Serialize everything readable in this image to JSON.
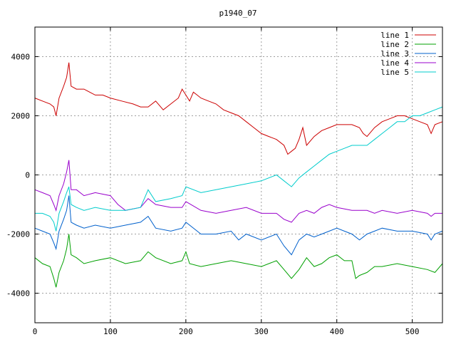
{
  "chart_data": {
    "type": "line",
    "title": "p1940_07",
    "xlabel": "",
    "ylabel": "",
    "xlim": [
      0,
      540
    ],
    "ylim": [
      -5000,
      5000
    ],
    "xticks": [
      0,
      100,
      200,
      300,
      400,
      500
    ],
    "yticks": [
      -4000,
      -2000,
      0,
      2000,
      4000
    ],
    "grid": true,
    "legend_position": "top-right",
    "series": [
      {
        "name": "line 1",
        "color": "#cc0000",
        "x": [
          0,
          10,
          20,
          25,
          28,
          32,
          38,
          42,
          45,
          48,
          55,
          65,
          80,
          90,
          100,
          115,
          130,
          140,
          150,
          160,
          170,
          180,
          190,
          195,
          200,
          205,
          210,
          215,
          220,
          230,
          240,
          250,
          260,
          270,
          280,
          290,
          300,
          310,
          320,
          330,
          335,
          340,
          345,
          350,
          355,
          360,
          370,
          380,
          390,
          400,
          410,
          420,
          430,
          435,
          440,
          450,
          460,
          470,
          480,
          490,
          500,
          510,
          520,
          525,
          530,
          540
        ],
        "y": [
          2600,
          2500,
          2400,
          2300,
          2000,
          2600,
          3000,
          3300,
          3800,
          3000,
          2900,
          2900,
          2700,
          2700,
          2600,
          2500,
          2400,
          2300,
          2300,
          2500,
          2200,
          2400,
          2600,
          2900,
          2700,
          2500,
          2800,
          2700,
          2600,
          2500,
          2400,
          2200,
          2100,
          2000,
          1800,
          1600,
          1400,
          1300,
          1200,
          1000,
          700,
          800,
          900,
          1200,
          1600,
          1000,
          1300,
          1500,
          1600,
          1700,
          1700,
          1700,
          1600,
          1400,
          1300,
          1600,
          1800,
          1900,
          2000,
          2000,
          1900,
          1800,
          1700,
          1400,
          1700,
          1800
        ]
      },
      {
        "name": "line 2",
        "color": "#00a000",
        "x": [
          0,
          10,
          20,
          25,
          28,
          32,
          38,
          42,
          45,
          48,
          55,
          65,
          80,
          100,
          120,
          140,
          150,
          160,
          180,
          195,
          200,
          205,
          220,
          240,
          260,
          280,
          300,
          320,
          330,
          340,
          350,
          360,
          370,
          380,
          390,
          400,
          410,
          420,
          425,
          430,
          440,
          450,
          460,
          480,
          500,
          520,
          530,
          540
        ],
        "y": [
          -2800,
          -3000,
          -3100,
          -3500,
          -3800,
          -3300,
          -2900,
          -2500,
          -2000,
          -2700,
          -2800,
          -3000,
          -2900,
          -2800,
          -3000,
          -2900,
          -2600,
          -2800,
          -3000,
          -2900,
          -2600,
          -3000,
          -3100,
          -3000,
          -2900,
          -3000,
          -3100,
          -2900,
          -3200,
          -3500,
          -3200,
          -2800,
          -3100,
          -3000,
          -2800,
          -2700,
          -2900,
          -2900,
          -3500,
          -3400,
          -3300,
          -3100,
          -3100,
          -3000,
          -3100,
          -3200,
          -3300,
          -3000
        ]
      },
      {
        "name": "line 3",
        "color": "#0060cc",
        "x": [
          0,
          10,
          20,
          25,
          28,
          32,
          38,
          42,
          45,
          48,
          55,
          65,
          80,
          100,
          120,
          140,
          150,
          160,
          180,
          195,
          200,
          220,
          240,
          260,
          270,
          280,
          300,
          320,
          330,
          340,
          350,
          360,
          370,
          380,
          390,
          400,
          410,
          420,
          430,
          440,
          450,
          460,
          480,
          500,
          520,
          525,
          530,
          540
        ],
        "y": [
          -1800,
          -1900,
          -2000,
          -2300,
          -2500,
          -1900,
          -1500,
          -1200,
          -700,
          -1600,
          -1700,
          -1800,
          -1700,
          -1800,
          -1700,
          -1600,
          -1400,
          -1800,
          -1900,
          -1800,
          -1600,
          -2000,
          -2000,
          -1900,
          -2200,
          -2000,
          -2200,
          -2000,
          -2400,
          -2700,
          -2200,
          -2000,
          -2100,
          -2000,
          -1900,
          -1800,
          -1900,
          -2000,
          -2200,
          -2000,
          -1900,
          -1800,
          -1900,
          -1900,
          -2000,
          -2200,
          -2000,
          -1900
        ]
      },
      {
        "name": "line 4",
        "color": "#9900cc",
        "x": [
          0,
          10,
          20,
          25,
          28,
          32,
          38,
          42,
          45,
          48,
          55,
          65,
          80,
          100,
          110,
          120,
          140,
          150,
          160,
          180,
          195,
          200,
          220,
          240,
          260,
          280,
          300,
          320,
          330,
          340,
          350,
          360,
          370,
          380,
          390,
          400,
          420,
          440,
          450,
          460,
          480,
          500,
          520,
          525,
          530,
          540
        ],
        "y": [
          -500,
          -600,
          -700,
          -1000,
          -1200,
          -700,
          -300,
          100,
          500,
          -500,
          -500,
          -700,
          -600,
          -700,
          -1000,
          -1200,
          -1100,
          -800,
          -1000,
          -1100,
          -1100,
          -900,
          -1200,
          -1300,
          -1200,
          -1100,
          -1300,
          -1300,
          -1500,
          -1600,
          -1300,
          -1200,
          -1300,
          -1100,
          -1000,
          -1100,
          -1200,
          -1200,
          -1300,
          -1200,
          -1300,
          -1200,
          -1300,
          -1400,
          -1300,
          -1300
        ]
      },
      {
        "name": "line 5",
        "color": "#00cccc",
        "x": [
          0,
          10,
          20,
          25,
          28,
          32,
          38,
          42,
          45,
          48,
          55,
          65,
          80,
          100,
          120,
          140,
          150,
          160,
          180,
          195,
          200,
          220,
          240,
          260,
          280,
          300,
          320,
          330,
          340,
          350,
          360,
          370,
          380,
          390,
          400,
          410,
          420,
          430,
          440,
          450,
          460,
          470,
          480,
          490,
          500,
          510,
          520,
          530,
          540
        ],
        "y": [
          -1300,
          -1300,
          -1400,
          -1600,
          -1900,
          -1300,
          -900,
          -600,
          -400,
          -1000,
          -1100,
          -1200,
          -1100,
          -1200,
          -1200,
          -1100,
          -500,
          -900,
          -800,
          -700,
          -400,
          -600,
          -500,
          -400,
          -300,
          -200,
          0,
          -200,
          -400,
          -100,
          100,
          300,
          500,
          700,
          800,
          900,
          1000,
          1000,
          1000,
          1200,
          1400,
          1600,
          1800,
          1800,
          2000,
          2000,
          2100,
          2200,
          2300
        ]
      }
    ]
  }
}
